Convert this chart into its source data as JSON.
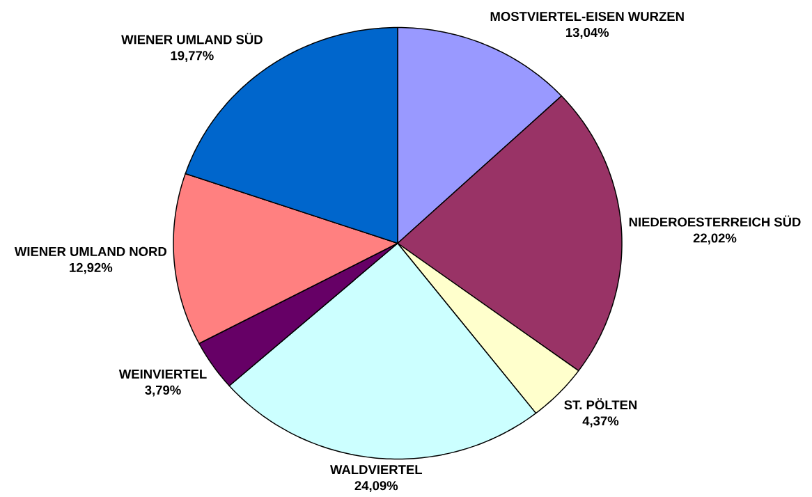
{
  "chart_data": {
    "type": "pie",
    "categories": [
      "MOSTVIERTEL-EISEN WURZEN",
      "NIEDEROESTERREICH SÜD",
      "ST. PÖLTEN",
      "WALDVIERTEL",
      "WEINVIERTEL",
      "WIENER UMLAND NORD",
      "WIENER UMLAND SÜD"
    ],
    "values": [
      13.04,
      22.02,
      4.37,
      24.09,
      3.79,
      12.92,
      19.77
    ],
    "colors": [
      "#9999ff",
      "#993366",
      "#ffffcc",
      "#ccffff",
      "#660066",
      "#ff8080",
      "#0066cc"
    ],
    "value_labels": [
      "13,04%",
      "22,02%",
      "4,37%",
      "24,09%",
      "3,79%",
      "12,92%",
      "19,77%"
    ]
  }
}
